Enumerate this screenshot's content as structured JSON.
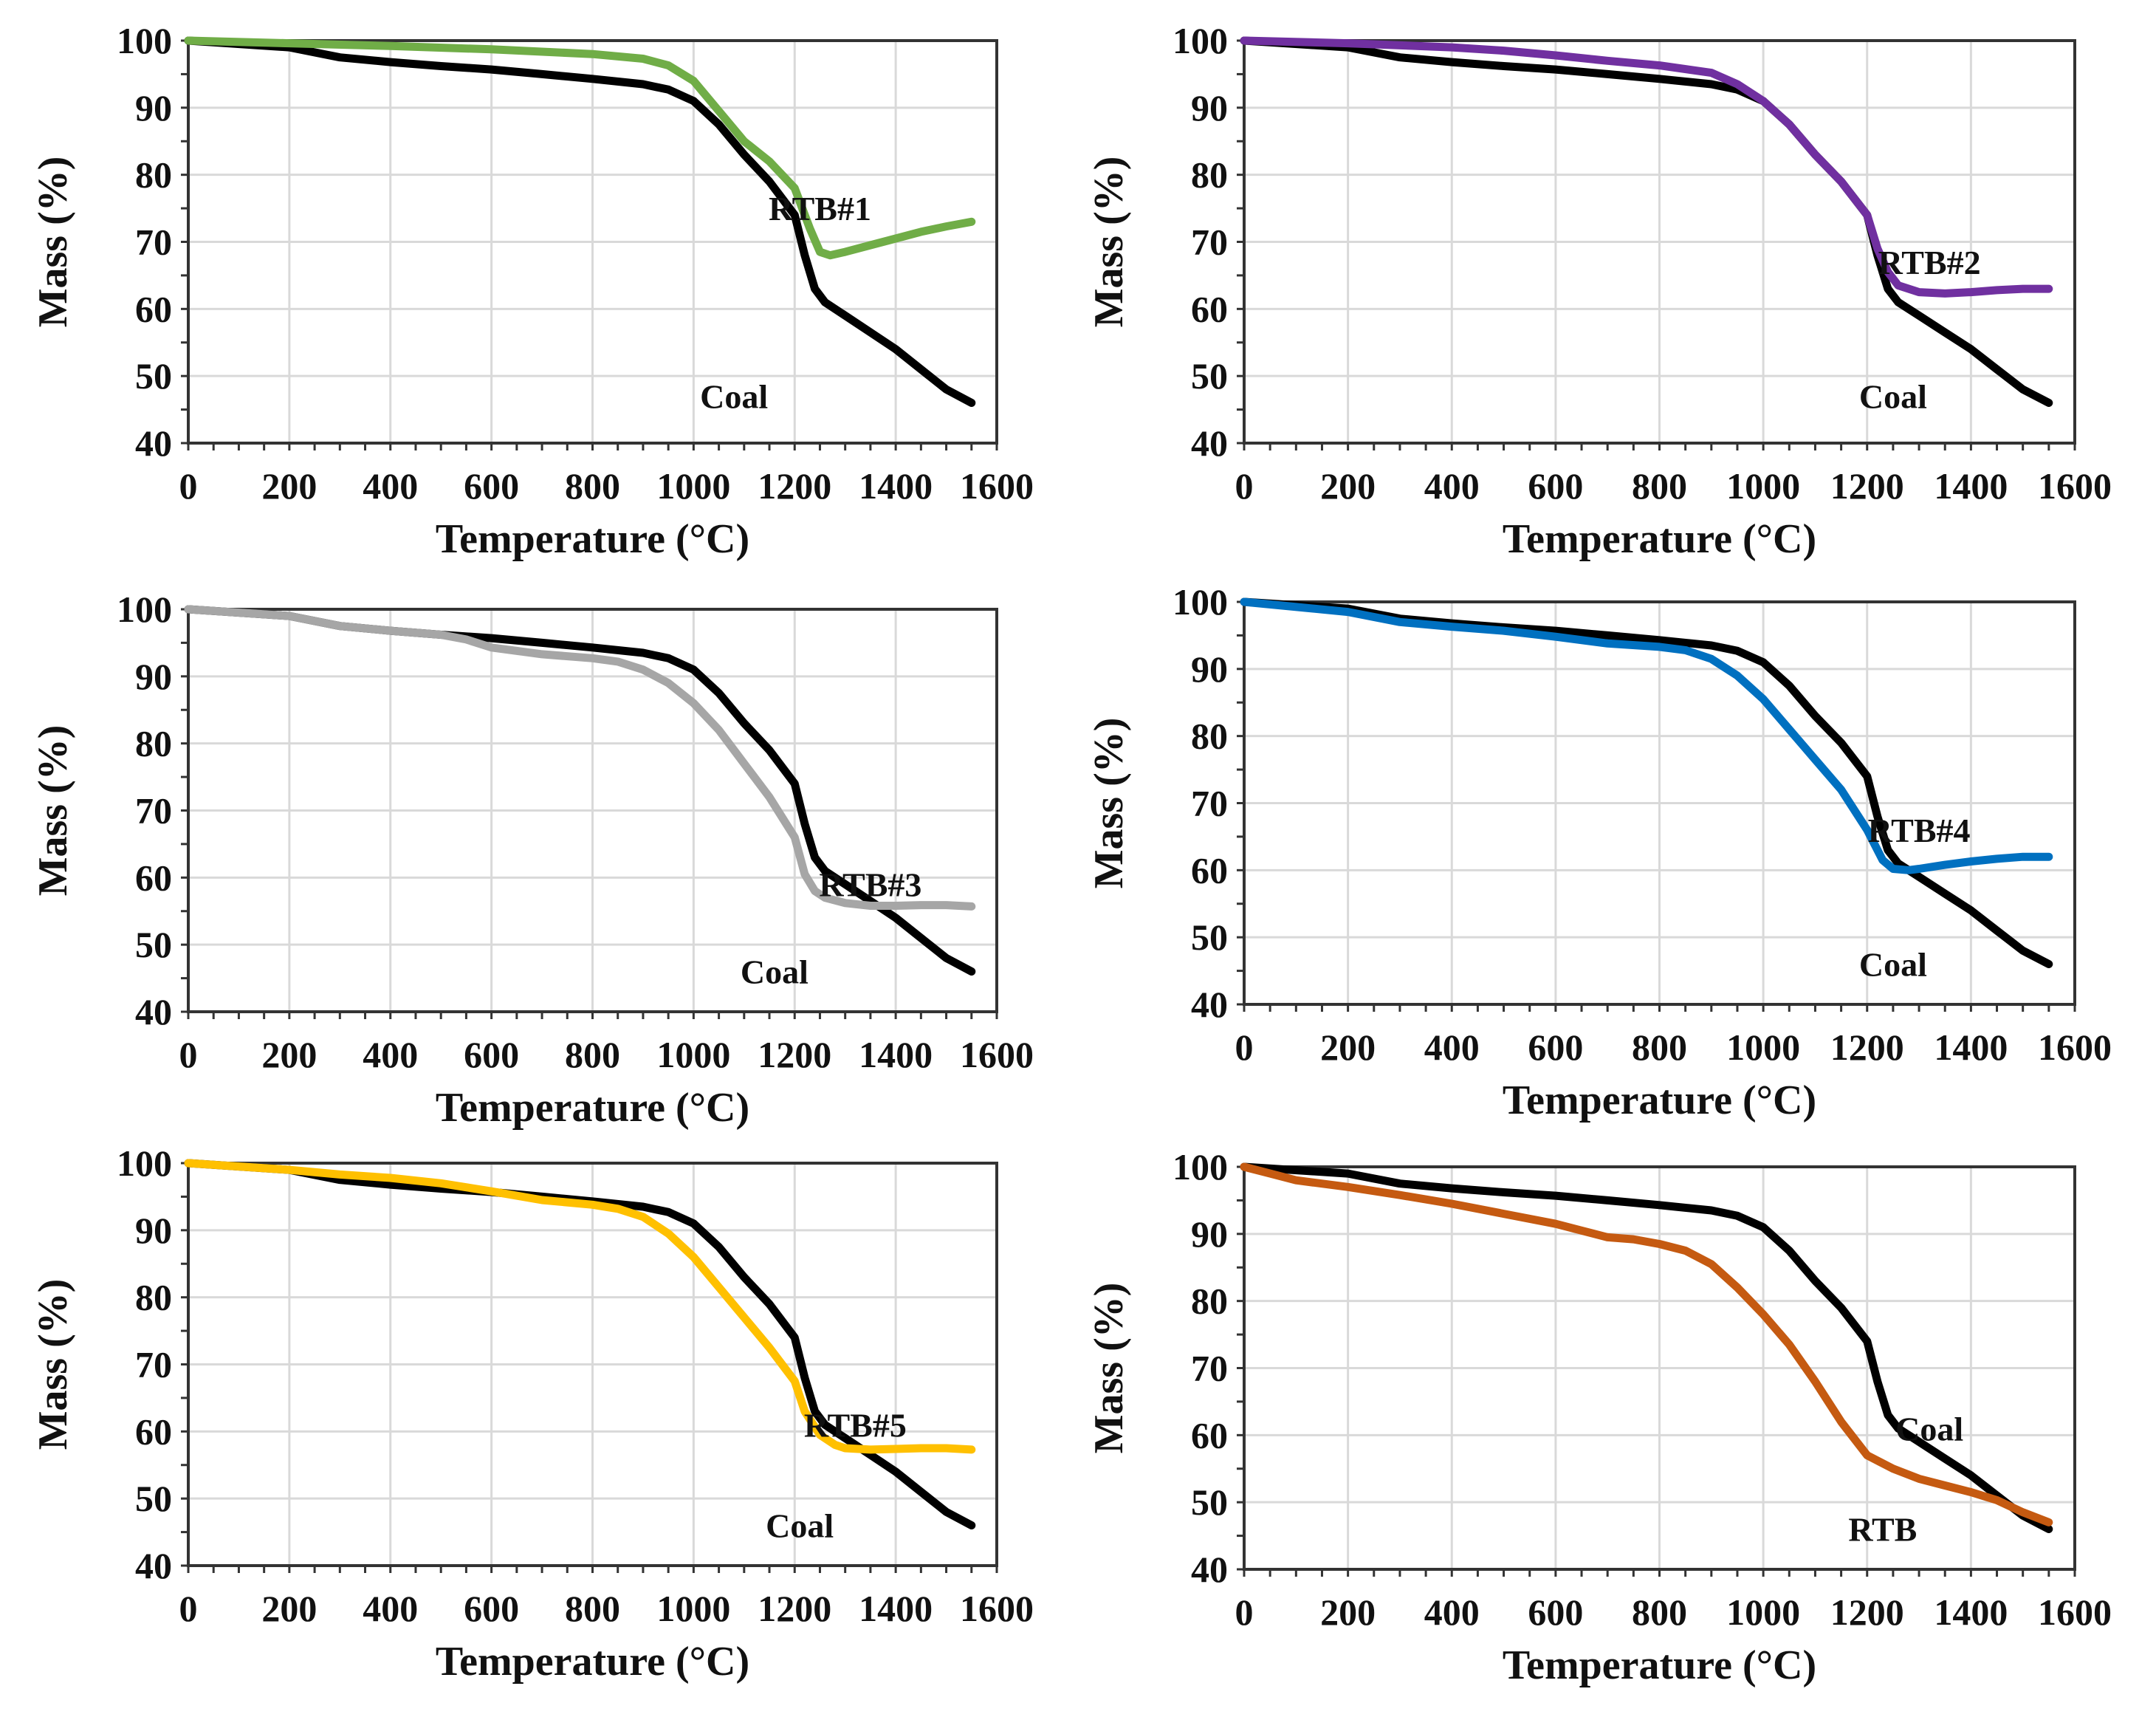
{
  "chart_data": [
    {
      "type": "line",
      "xlabel": "Temperature (°C)",
      "ylabel": "Mass (%)",
      "xlim": [
        0,
        1600
      ],
      "ylim": [
        40,
        100
      ],
      "x_ticks": [
        "0",
        "200",
        "400",
        "600",
        "800",
        "1000",
        "1200",
        "1400",
        "1600"
      ],
      "y_ticks": [
        "40",
        "50",
        "60",
        "70",
        "80",
        "90",
        "100"
      ],
      "grid": true,
      "series": [
        {
          "name": "Coal",
          "color": "#000000",
          "x": [
            0,
            200,
            300,
            400,
            500,
            600,
            700,
            800,
            900,
            950,
            1000,
            1050,
            1100,
            1150,
            1200,
            1220,
            1240,
            1260,
            1300,
            1350,
            1400,
            1450,
            1500,
            1550
          ],
          "y": [
            100,
            99,
            97.5,
            96.8,
            96.2,
            95.7,
            95,
            94.3,
            93.5,
            92.7,
            91,
            87.5,
            83,
            79,
            74,
            68,
            63,
            61,
            59,
            56.5,
            54,
            51,
            48,
            46
          ]
        },
        {
          "name": "RTB#1",
          "color": "#70ad47",
          "x": [
            0,
            200,
            400,
            600,
            800,
            900,
            950,
            1000,
            1050,
            1100,
            1150,
            1200,
            1230,
            1250,
            1270,
            1300,
            1350,
            1400,
            1450,
            1500,
            1550
          ],
          "y": [
            100,
            99.6,
            99.2,
            98.7,
            98,
            97.3,
            96.3,
            94,
            89.5,
            85,
            82,
            78,
            72,
            68.5,
            68,
            68.5,
            69.5,
            70.5,
            71.5,
            72.3,
            73
          ]
        }
      ],
      "annotations": [
        {
          "text": "RTB#1",
          "series": "RTB#1"
        },
        {
          "text": "Coal",
          "series": "Coal"
        }
      ]
    },
    {
      "type": "line",
      "xlabel": "Temperature (°C)",
      "ylabel": "Mass (%)",
      "xlim": [
        0,
        1600
      ],
      "ylim": [
        40,
        100
      ],
      "x_ticks": [
        "0",
        "200",
        "400",
        "600",
        "800",
        "1000",
        "1200",
        "1400",
        "1600"
      ],
      "y_ticks": [
        "40",
        "50",
        "60",
        "70",
        "80",
        "90",
        "100"
      ],
      "grid": true,
      "series": [
        {
          "name": "Coal",
          "color": "#000000",
          "x": [
            0,
            200,
            300,
            400,
            500,
            600,
            700,
            800,
            900,
            950,
            1000,
            1050,
            1100,
            1150,
            1200,
            1220,
            1240,
            1260,
            1300,
            1350,
            1400,
            1450,
            1500,
            1550
          ],
          "y": [
            100,
            99,
            97.5,
            96.8,
            96.2,
            95.7,
            95,
            94.3,
            93.5,
            92.7,
            91,
            87.5,
            83,
            79,
            74,
            68,
            63,
            61,
            59,
            56.5,
            54,
            51,
            48,
            46
          ]
        },
        {
          "name": "RTB#2",
          "color": "#7030a0",
          "x": [
            0,
            200,
            400,
            500,
            600,
            700,
            800,
            900,
            950,
            1000,
            1050,
            1100,
            1150,
            1200,
            1220,
            1240,
            1260,
            1300,
            1350,
            1400,
            1450,
            1500,
            1550
          ],
          "y": [
            100,
            99.6,
            99,
            98.5,
            97.8,
            97,
            96.3,
            95.2,
            93.5,
            91,
            87.5,
            83,
            79,
            74,
            69,
            65.5,
            63.5,
            62.5,
            62.3,
            62.5,
            62.8,
            63,
            63
          ]
        }
      ],
      "annotations": [
        {
          "text": "RTB#2",
          "series": "RTB#2"
        },
        {
          "text": "Coal",
          "series": "Coal"
        }
      ]
    },
    {
      "type": "line",
      "xlabel": "Temperature (°C)",
      "ylabel": "Mass (%)",
      "xlim": [
        0,
        1600
      ],
      "ylim": [
        40,
        100
      ],
      "x_ticks": [
        "0",
        "200",
        "400",
        "600",
        "800",
        "1000",
        "1200",
        "1400",
        "1600"
      ],
      "y_ticks": [
        "40",
        "50",
        "60",
        "70",
        "80",
        "90",
        "100"
      ],
      "grid": true,
      "series": [
        {
          "name": "Coal",
          "color": "#000000",
          "x": [
            0,
            200,
            300,
            400,
            500,
            600,
            700,
            800,
            900,
            950,
            1000,
            1050,
            1100,
            1150,
            1200,
            1220,
            1240,
            1260,
            1300,
            1350,
            1400,
            1450,
            1500,
            1550
          ],
          "y": [
            100,
            99,
            97.5,
            96.8,
            96.2,
            95.7,
            95,
            94.3,
            93.5,
            92.7,
            91,
            87.5,
            83,
            79,
            74,
            68,
            63,
            61,
            59,
            56.5,
            54,
            51,
            48,
            46
          ]
        },
        {
          "name": "RTB#3",
          "color": "#a6a6a6",
          "x": [
            0,
            200,
            300,
            400,
            500,
            550,
            600,
            700,
            800,
            850,
            900,
            950,
            1000,
            1050,
            1100,
            1150,
            1200,
            1220,
            1240,
            1260,
            1300,
            1350,
            1400,
            1450,
            1500,
            1550
          ],
          "y": [
            100,
            99,
            97.5,
            96.8,
            96.2,
            95.5,
            94.3,
            93.3,
            92.7,
            92.2,
            91,
            89,
            86,
            82,
            77,
            72,
            66,
            60.5,
            58,
            57,
            56.2,
            55.8,
            55.8,
            55.9,
            55.9,
            55.7
          ]
        }
      ],
      "annotations": [
        {
          "text": "RTB#3",
          "series": "RTB#3"
        },
        {
          "text": "Coal",
          "series": "Coal"
        }
      ]
    },
    {
      "type": "line",
      "xlabel": "Temperature (°C)",
      "ylabel": "Mass (%)",
      "xlim": [
        0,
        1600
      ],
      "ylim": [
        40,
        100
      ],
      "x_ticks": [
        "0",
        "200",
        "400",
        "600",
        "800",
        "1000",
        "1200",
        "1400",
        "1600"
      ],
      "y_ticks": [
        "40",
        "50",
        "60",
        "70",
        "80",
        "90",
        "100"
      ],
      "grid": true,
      "series": [
        {
          "name": "Coal",
          "color": "#000000",
          "x": [
            0,
            200,
            300,
            400,
            500,
            600,
            700,
            800,
            900,
            950,
            1000,
            1050,
            1100,
            1150,
            1200,
            1220,
            1240,
            1260,
            1300,
            1350,
            1400,
            1450,
            1500,
            1550
          ],
          "y": [
            100,
            99,
            97.5,
            96.8,
            96.2,
            95.7,
            95,
            94.3,
            93.5,
            92.7,
            91,
            87.5,
            83,
            79,
            74,
            68,
            63,
            61,
            59,
            56.5,
            54,
            51,
            48,
            46
          ]
        },
        {
          "name": "RTB#4",
          "color": "#0070c0",
          "x": [
            0,
            200,
            300,
            400,
            500,
            600,
            700,
            800,
            850,
            900,
            950,
            1000,
            1050,
            1100,
            1150,
            1200,
            1230,
            1250,
            1280,
            1300,
            1350,
            1400,
            1450,
            1500,
            1550
          ],
          "y": [
            100,
            98.5,
            97,
            96.3,
            95.7,
            94.8,
            93.8,
            93.3,
            92.8,
            91.5,
            89,
            85.5,
            81,
            76.5,
            72,
            66,
            61.5,
            60.2,
            60,
            60.2,
            60.8,
            61.3,
            61.7,
            62,
            62
          ]
        }
      ],
      "annotations": [
        {
          "text": "RTB#4",
          "series": "RTB#4"
        },
        {
          "text": "Coal",
          "series": "Coal"
        }
      ]
    },
    {
      "type": "line",
      "xlabel": "Temperature (°C)",
      "ylabel": "Mass (%)",
      "xlim": [
        0,
        1600
      ],
      "ylim": [
        40,
        100
      ],
      "x_ticks": [
        "0",
        "200",
        "400",
        "600",
        "800",
        "1000",
        "1200",
        "1400",
        "1600"
      ],
      "y_ticks": [
        "40",
        "50",
        "60",
        "70",
        "80",
        "90",
        "100"
      ],
      "grid": true,
      "series": [
        {
          "name": "Coal",
          "color": "#000000",
          "x": [
            0,
            200,
            300,
            400,
            500,
            600,
            700,
            800,
            900,
            950,
            1000,
            1050,
            1100,
            1150,
            1200,
            1220,
            1240,
            1260,
            1300,
            1350,
            1400,
            1450,
            1500,
            1550
          ],
          "y": [
            100,
            99,
            97.5,
            96.8,
            96.2,
            95.7,
            95,
            94.3,
            93.5,
            92.7,
            91,
            87.5,
            83,
            79,
            74,
            68,
            63,
            61,
            59,
            56.5,
            54,
            51,
            48,
            46
          ]
        },
        {
          "name": "RTB#5",
          "color": "#ffc000",
          "x": [
            0,
            200,
            300,
            400,
            500,
            600,
            700,
            800,
            850,
            900,
            950,
            1000,
            1050,
            1100,
            1150,
            1200,
            1220,
            1250,
            1280,
            1300,
            1350,
            1400,
            1450,
            1500,
            1550
          ],
          "y": [
            100,
            99,
            98.3,
            97.8,
            97,
            95.8,
            94.5,
            93.8,
            93.2,
            92,
            89.5,
            86,
            81.5,
            77,
            72.5,
            67.5,
            63,
            59.5,
            58,
            57.5,
            57.3,
            57.4,
            57.5,
            57.5,
            57.3
          ]
        }
      ],
      "annotations": [
        {
          "text": "RTB#5",
          "series": "RTB#5"
        },
        {
          "text": "Coal",
          "series": "Coal"
        }
      ]
    },
    {
      "type": "line",
      "xlabel": "Temperature (°C)",
      "ylabel": "Mass (%)",
      "xlim": [
        0,
        1600
      ],
      "ylim": [
        40,
        100
      ],
      "x_ticks": [
        "0",
        "200",
        "400",
        "600",
        "800",
        "1000",
        "1200",
        "1400",
        "1600"
      ],
      "y_ticks": [
        "40",
        "50",
        "60",
        "70",
        "80",
        "90",
        "100"
      ],
      "grid": true,
      "series": [
        {
          "name": "Coal",
          "color": "#000000",
          "x": [
            0,
            200,
            300,
            400,
            500,
            600,
            700,
            800,
            900,
            950,
            1000,
            1050,
            1100,
            1150,
            1200,
            1220,
            1240,
            1260,
            1300,
            1350,
            1400,
            1450,
            1500,
            1550
          ],
          "y": [
            100,
            99,
            97.5,
            96.8,
            96.2,
            95.7,
            95,
            94.3,
            93.5,
            92.7,
            91,
            87.5,
            83,
            79,
            74,
            68,
            63,
            61,
            59,
            56.5,
            54,
            51,
            48,
            46
          ]
        },
        {
          "name": "RTB",
          "color": "#c55a11",
          "x": [
            0,
            50,
            100,
            200,
            300,
            400,
            500,
            600,
            650,
            700,
            750,
            800,
            850,
            900,
            950,
            1000,
            1050,
            1100,
            1150,
            1200,
            1250,
            1300,
            1350,
            1400,
            1450,
            1500,
            1550
          ],
          "y": [
            100,
            99,
            98,
            97,
            95.8,
            94.5,
            93,
            91.5,
            90.5,
            89.5,
            89.2,
            88.5,
            87.5,
            85.5,
            82,
            78,
            73.5,
            68,
            62,
            57,
            55,
            53.5,
            52.5,
            51.5,
            50.3,
            48.5,
            47
          ]
        }
      ],
      "annotations": [
        {
          "text": "Coal",
          "series": "Coal"
        },
        {
          "text": "RTB",
          "series": "RTB"
        }
      ]
    }
  ]
}
